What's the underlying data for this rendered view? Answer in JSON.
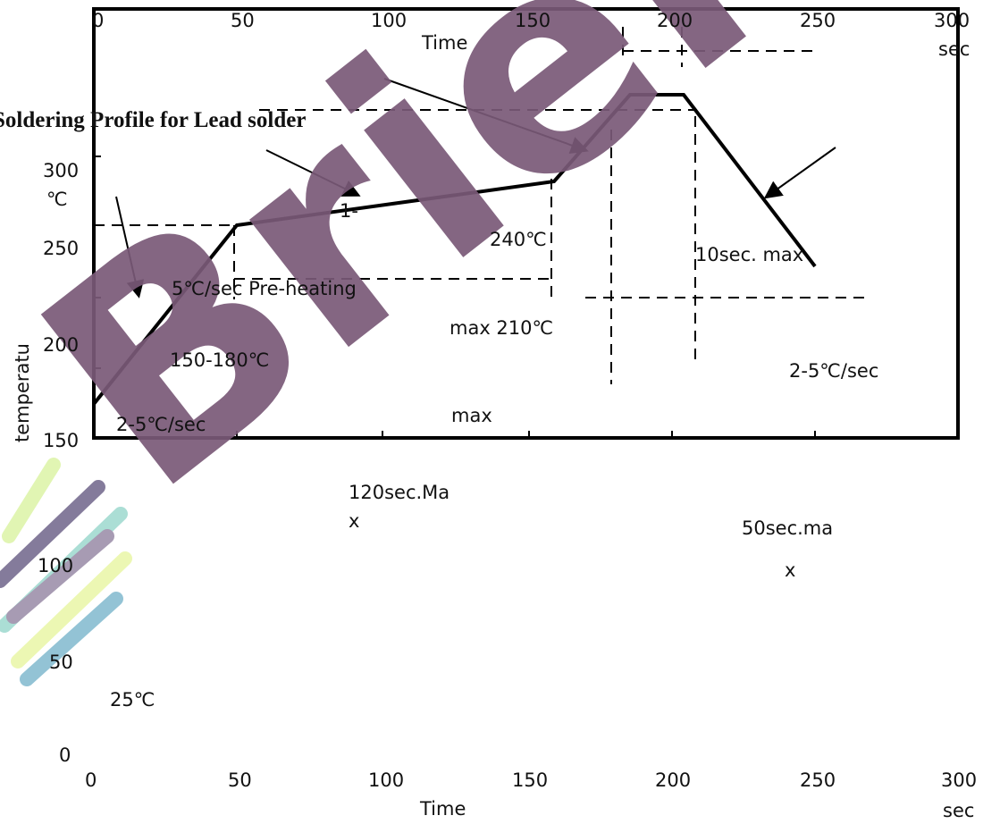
{
  "header": {
    "title": "Soldering Profile for Lead solder"
  },
  "top_axis": {
    "ticks": [
      "0",
      "50",
      "100",
      "150",
      "200",
      "250",
      "300"
    ],
    "unit": "sec",
    "label": "Time"
  },
  "temperature_axis": {
    "ticks": [
      "300",
      "℃",
      "250",
      "200",
      "150",
      "100",
      "50",
      "0"
    ],
    "label": "temperatu"
  },
  "annotations": [
    "1-",
    "240℃",
    "10sec. max",
    "5℃/sec Pre-heating",
    "max 210℃",
    "150-180℃",
    "2-5℃/sec",
    "2-5℃/sec",
    "max",
    "120sec.Ma",
    "x",
    "50sec.ma",
    "x",
    "25℃"
  ],
  "bottom_axis": {
    "ticks": [
      "0",
      "50",
      "100",
      "150",
      "200",
      "250",
      "300"
    ],
    "label": "Time",
    "unit": "sec"
  },
  "watermark": "Brief"
}
